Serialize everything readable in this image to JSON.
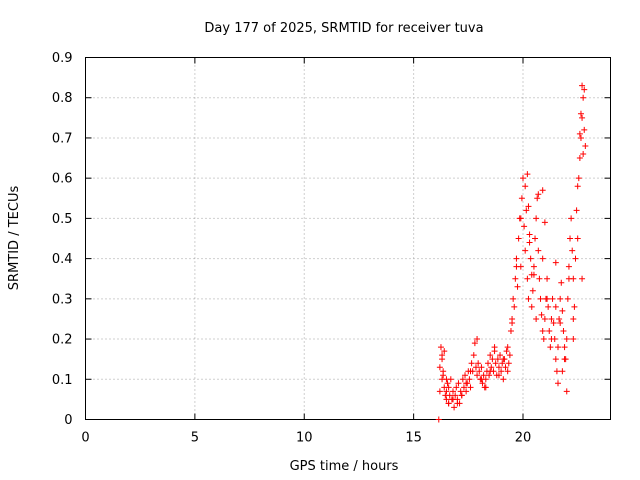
{
  "chart_data": {
    "type": "scatter",
    "title": "Day 177 of 2025, SRMTID for receiver tuva",
    "xlabel": "GPS time / hours",
    "ylabel": "SRMTID / TECUs",
    "xlim": [
      0,
      24
    ],
    "ylim": [
      0,
      0.9
    ],
    "x_ticks": [
      0,
      5,
      10,
      15,
      20
    ],
    "x_tick_labels": [
      "0",
      "5",
      "10",
      "15",
      "20"
    ],
    "y_ticks": [
      0,
      0.1,
      0.2,
      0.3,
      0.4,
      0.5,
      0.6,
      0.7,
      0.8,
      0.9
    ],
    "y_tick_labels": [
      "0",
      "0.1",
      "0.2",
      "0.3",
      "0.4",
      "0.5",
      "0.6",
      "0.7",
      "0.8",
      "0.9"
    ],
    "grid": true,
    "marker": "+",
    "color": "#ff0000",
    "series": [
      {
        "name": "SRMTID",
        "x": [
          16.15,
          16.2,
          16.2,
          16.25,
          16.3,
          16.3,
          16.35,
          16.4,
          16.4,
          16.45,
          16.5,
          16.5,
          16.55,
          16.6,
          16.6,
          16.65,
          16.7,
          16.75,
          16.8,
          16.85,
          16.9,
          16.95,
          17.0,
          17.05,
          17.1,
          17.15,
          17.2,
          17.25,
          17.3,
          17.35,
          17.4,
          17.45,
          17.5,
          17.55,
          17.6,
          17.65,
          17.7,
          17.75,
          17.8,
          17.85,
          17.9,
          17.95,
          18.0,
          18.05,
          18.1,
          18.15,
          18.2,
          18.25,
          18.3,
          18.35,
          18.4,
          18.45,
          18.5,
          18.55,
          18.6,
          18.65,
          18.7,
          18.75,
          18.8,
          18.85,
          18.9,
          18.95,
          19.0,
          19.05,
          19.1,
          19.15,
          19.2,
          19.25,
          19.3,
          19.35,
          19.4,
          19.45,
          19.5,
          19.55,
          19.6,
          19.65,
          19.7,
          19.75,
          19.8,
          19.85,
          19.9,
          19.95,
          20.0,
          20.05,
          20.1,
          20.15,
          20.2,
          20.25,
          20.3,
          20.35,
          20.4,
          20.45,
          20.5,
          20.55,
          20.6,
          20.65,
          20.7,
          20.75,
          20.8,
          20.85,
          20.9,
          20.95,
          21.0,
          21.05,
          21.1,
          21.15,
          21.2,
          21.25,
          21.3,
          21.35,
          21.4,
          21.45,
          21.5,
          21.55,
          21.6,
          21.65,
          21.7,
          21.75,
          21.8,
          21.85,
          21.9,
          21.95,
          22.0,
          22.05,
          22.1,
          22.15,
          22.2,
          22.25,
          22.3,
          22.35,
          22.4,
          22.45,
          22.5,
          22.55,
          22.6,
          22.65,
          22.7,
          22.75,
          22.8,
          22.85,
          16.3,
          16.35,
          16.5,
          16.6,
          16.8,
          17.0,
          17.2,
          17.4,
          17.6,
          17.9,
          18.1,
          18.3,
          18.5,
          18.7,
          18.9,
          19.1,
          19.3,
          19.5,
          19.7,
          19.9,
          20.1,
          20.3,
          20.5,
          20.7,
          20.9,
          21.1,
          21.3,
          21.5,
          21.7,
          21.9,
          22.1,
          22.3,
          22.5,
          22.7,
          22.6,
          22.65,
          22.7,
          22.75,
          22.8,
          20.2,
          20.25,
          20.9,
          21.0,
          21.5,
          21.6,
          20.4,
          20.6,
          21.8,
          22.0,
          22.3
        ],
        "y": [
          0.0,
          0.07,
          0.13,
          0.18,
          0.15,
          0.1,
          0.12,
          0.17,
          0.08,
          0.06,
          0.1,
          0.05,
          0.09,
          0.04,
          0.08,
          0.06,
          0.1,
          0.05,
          0.07,
          0.03,
          0.06,
          0.08,
          0.05,
          0.09,
          0.04,
          0.07,
          0.06,
          0.1,
          0.08,
          0.11,
          0.07,
          0.09,
          0.12,
          0.1,
          0.08,
          0.14,
          0.12,
          0.16,
          0.19,
          0.13,
          0.11,
          0.14,
          0.12,
          0.1,
          0.13,
          0.09,
          0.11,
          0.08,
          0.1,
          0.12,
          0.14,
          0.11,
          0.16,
          0.13,
          0.15,
          0.12,
          0.17,
          0.14,
          0.11,
          0.15,
          0.13,
          0.16,
          0.12,
          0.14,
          0.1,
          0.15,
          0.13,
          0.17,
          0.12,
          0.14,
          0.16,
          0.22,
          0.25,
          0.3,
          0.28,
          0.35,
          0.4,
          0.33,
          0.45,
          0.5,
          0.38,
          0.55,
          0.6,
          0.48,
          0.42,
          0.52,
          0.35,
          0.3,
          0.44,
          0.4,
          0.28,
          0.32,
          0.38,
          0.45,
          0.5,
          0.55,
          0.42,
          0.35,
          0.3,
          0.26,
          0.22,
          0.2,
          0.25,
          0.3,
          0.35,
          0.28,
          0.22,
          0.18,
          0.25,
          0.3,
          0.24,
          0.2,
          0.15,
          0.12,
          0.18,
          0.25,
          0.3,
          0.34,
          0.27,
          0.22,
          0.18,
          0.15,
          0.2,
          0.3,
          0.38,
          0.45,
          0.5,
          0.42,
          0.35,
          0.28,
          0.4,
          0.52,
          0.58,
          0.6,
          0.65,
          0.7,
          0.75,
          0.8,
          0.82,
          0.68,
          0.16,
          0.11,
          0.07,
          0.04,
          0.05,
          0.04,
          0.06,
          0.09,
          0.12,
          0.2,
          0.1,
          0.08,
          0.12,
          0.18,
          0.11,
          0.15,
          0.18,
          0.24,
          0.38,
          0.5,
          0.58,
          0.46,
          0.36,
          0.56,
          0.4,
          0.3,
          0.2,
          0.28,
          0.24,
          0.15,
          0.35,
          0.25,
          0.45,
          0.35,
          0.71,
          0.76,
          0.83,
          0.66,
          0.72,
          0.61,
          0.53,
          0.57,
          0.49,
          0.39,
          0.09,
          0.36,
          0.25,
          0.12,
          0.07,
          0.2
        ]
      }
    ]
  }
}
